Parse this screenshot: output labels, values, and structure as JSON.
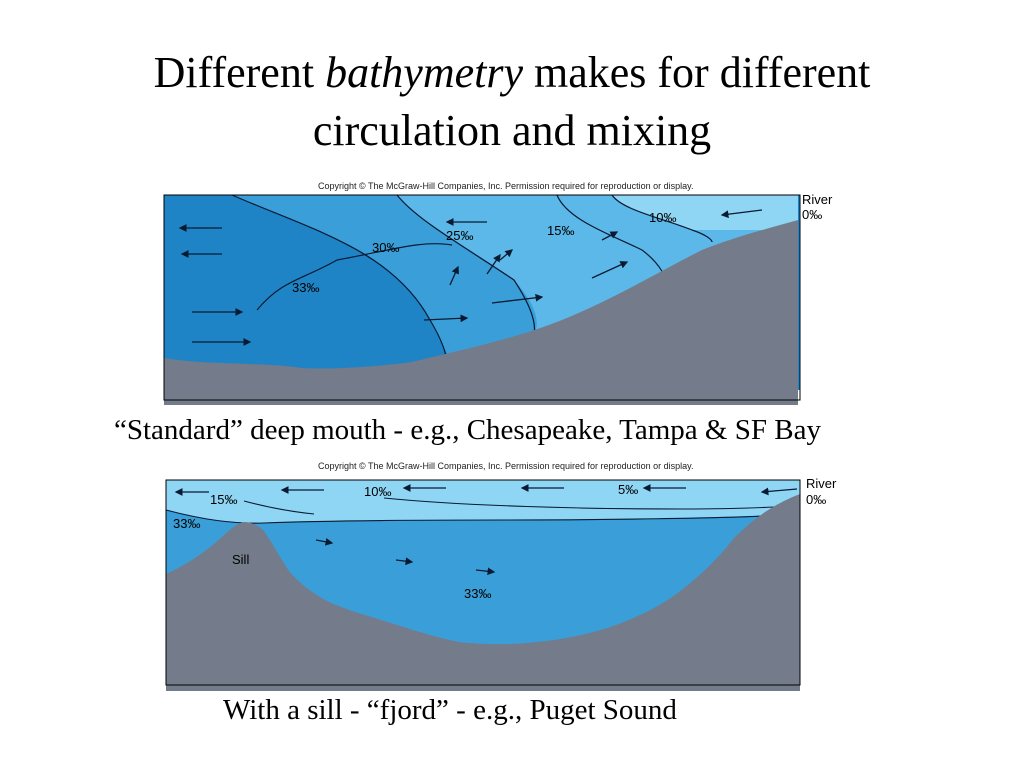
{
  "slide": {
    "title_part1": "Different",
    "title_italic": "bathymetry",
    "title_part2": "makes for different",
    "title_line2": "circulation and mixing"
  },
  "diagram_top": {
    "copyright": "Copyright © The McGraw-Hill Companies, Inc. Permission required for reproduction or display.",
    "river_label": "River",
    "river_salinity": "0‰",
    "isohalines": [
      "30‰",
      "25‰",
      "15‰",
      "10‰",
      "33‰"
    ],
    "caption": "“Standard” deep mouth - e.g., Chesapeake, Tampa & SF Bay"
  },
  "diagram_bottom": {
    "copyright": "Copyright © The McGraw-Hill Companies, Inc. Permission required for reproduction or display.",
    "river_label": "River",
    "river_salinity": "0‰",
    "surface_labels": [
      "15‰",
      "10‰",
      "5‰"
    ],
    "deep_labels": [
      "33‰",
      "33‰"
    ],
    "sill_label": "Sill",
    "caption": "With a sill - “fjord” - e.g., Puget Sound"
  },
  "colors": {
    "deep_water": "#1f84c6",
    "mid_water": "#3a9fd8",
    "light_water": "#5cb8e8",
    "surface_water": "#8fd5f4",
    "seafloor": "#747b8a"
  }
}
